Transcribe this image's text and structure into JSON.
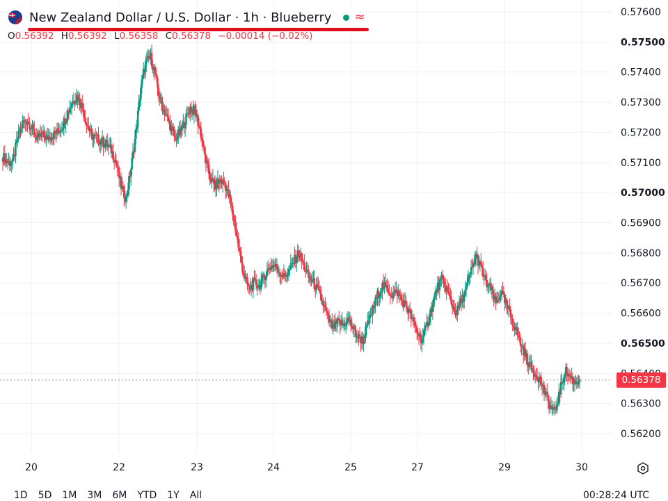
{
  "header": {
    "title": "New Zealand Dollar / U.S. Dollar · 1h · Blueberry",
    "ohlc": [
      {
        "key": "O",
        "value": "0.56392"
      },
      {
        "key": "H",
        "value": "0.56392"
      },
      {
        "key": "L",
        "value": "0.56358"
      },
      {
        "key": "C",
        "value": "0.56378"
      }
    ],
    "change": "−0.00014 (−0.02%)",
    "status_icon": "market-open-dot-icon",
    "alt_icon": "approx-wave-icon"
  },
  "last_price_label": "0.56378",
  "ranges": [
    "1D",
    "5D",
    "1M",
    "3M",
    "6M",
    "YTD",
    "1Y",
    "All"
  ],
  "clock": "00:28:24 UTC",
  "colors": {
    "up": "#089981",
    "down": "#f23645",
    "grid": "#eeeff2",
    "underline": "#e0101a"
  },
  "chart_data": {
    "type": "candlestick",
    "y_ticks": [
      "0.57600",
      "0.57500",
      "0.57400",
      "0.57300",
      "0.57200",
      "0.57100",
      "0.57000",
      "0.56900",
      "0.56800",
      "0.56700",
      "0.56600",
      "0.56500",
      "0.56400",
      "0.56300",
      "0.56200"
    ],
    "y_bold_ticks": [
      "0.57500",
      "0.57000",
      "0.56500"
    ],
    "ylim": [
      0.5615,
      0.5765
    ],
    "x_ticks": [
      "20",
      "22",
      "23",
      "24",
      "25",
      "27",
      "29",
      "30"
    ],
    "last_price": 0.56378,
    "grid": true,
    "approx_close_path": [
      [
        0.5712,
        0.571,
        0.571,
        0.5718,
        0.5723,
        0.5724,
        0.5721,
        0.5718,
        0.5719,
        0.5718,
        0.5719,
        0.572,
        0.5722,
        0.5726,
        0.573,
        0.5732,
        0.5729,
        0.5723,
        0.5719,
        0.5718,
        0.5717,
        0.5716,
        0.5714,
        0.571,
        0.5702,
        0.5698
      ]
    ],
    "approx_close_path_2": [
      [
        0.5708,
        0.572,
        0.5735,
        0.5743,
        0.5745,
        0.5738,
        0.573,
        0.5726,
        0.5722,
        0.5718,
        0.572,
        0.5724,
        0.5728,
        0.5727,
        0.5721,
        0.5712,
        0.5705,
        0.5702,
        0.5704,
        0.5703,
        0.5698,
        0.569,
        0.568,
        0.5672,
        0.5668,
        0.567
      ]
    ],
    "approx_close_path_3": [
      [
        0.5669,
        0.5672,
        0.5675,
        0.5676,
        0.5674,
        0.5672,
        0.5674,
        0.5677,
        0.568,
        0.5676,
        0.5672,
        0.567,
        0.5667,
        0.5663,
        0.5658,
        0.5655,
        0.5657,
        0.5656,
        0.5658,
        0.5655,
        0.5652,
        0.5651,
        0.5656,
        0.5661,
        0.5666,
        0.5669
      ]
    ],
    "approx_close_path_4": [
      [
        0.5668,
        0.5666,
        0.5667,
        0.5664,
        0.5662,
        0.5658,
        0.5654,
        0.5651,
        0.5656,
        0.5662,
        0.5668,
        0.5671,
        0.5668,
        0.5663,
        0.566,
        0.5664,
        0.5668,
        0.5674,
        0.5679,
        0.5675,
        0.567,
        0.5668,
        0.5663,
        0.5667,
        0.5663,
        0.5659
      ]
    ],
    "approx_close_path_5": [
      [
        0.5655,
        0.565,
        0.5646,
        0.5642,
        0.564,
        0.5638,
        0.5633,
        0.5629,
        0.5627,
        0.5634,
        0.5641,
        0.5639,
        0.5637,
        0.5638
      ]
    ]
  }
}
